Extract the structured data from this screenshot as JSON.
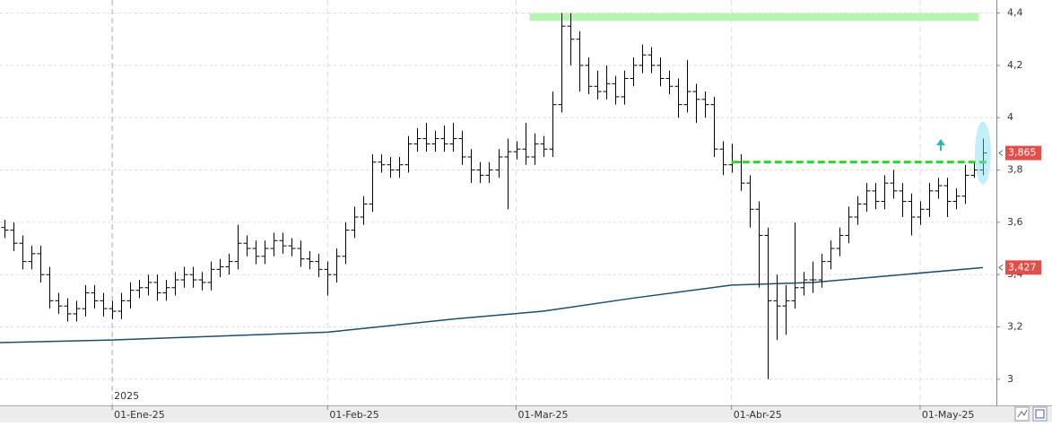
{
  "chart_data": {
    "type": "ohlc",
    "xlim": [
      -0.5,
      110.5
    ],
    "xticks": [
      {
        "value": 12,
        "label": "01-Ene-25"
      },
      {
        "value": 36,
        "label": "01-Feb-25"
      },
      {
        "value": 57,
        "label": "01-Mar-25"
      },
      {
        "value": 81,
        "label": "01-Abr-25"
      },
      {
        "value": 102,
        "label": "01-May-25"
      }
    ],
    "year_label": {
      "value": 12,
      "label": "2025"
    },
    "ylim": [
      2.9,
      4.45
    ],
    "yticks": [
      3,
      {
        "value": 3.2,
        "label": "3,2"
      },
      {
        "value": 3.4,
        "label": "3,4"
      },
      {
        "value": 3.6,
        "label": "3,6"
      },
      {
        "value": 3.8,
        "label": "3,8"
      },
      4,
      {
        "value": 4.2,
        "label": "4,2"
      },
      {
        "value": 4.4,
        "label": "4,4"
      }
    ],
    "grid": true,
    "color": "#000000",
    "open": [
      3.58,
      3.57,
      3.52,
      3.45,
      3.48,
      3.4,
      3.3,
      3.28,
      3.25,
      3.27,
      3.33,
      3.3,
      3.27,
      3.26,
      3.3,
      3.34,
      3.35,
      3.37,
      3.33,
      3.35,
      3.38,
      3.4,
      3.38,
      3.37,
      3.42,
      3.43,
      3.45,
      3.52,
      3.5,
      3.47,
      3.5,
      3.53,
      3.51,
      3.5,
      3.46,
      3.45,
      3.42,
      3.4,
      3.47,
      3.57,
      3.62,
      3.67,
      3.83,
      3.82,
      3.8,
      3.82,
      3.9,
      3.92,
      3.9,
      3.92,
      3.9,
      3.92,
      3.85,
      3.8,
      3.78,
      3.8,
      3.85,
      3.87,
      3.88,
      3.85,
      3.9,
      3.88,
      4.05,
      4.35,
      4.3,
      4.2,
      4.12,
      4.1,
      4.13,
      4.08,
      4.15,
      4.2,
      4.24,
      4.2,
      4.15,
      4.12,
      4.05,
      4.1,
      4.07,
      4.05,
      3.88,
      3.82,
      3.83,
      3.75,
      3.65,
      3.55,
      3.3,
      3.28,
      3.3,
      3.35,
      3.38,
      3.38,
      3.45,
      3.5,
      3.55,
      3.62,
      3.67,
      3.72,
      3.68,
      3.75,
      3.72,
      3.68,
      3.62,
      3.65,
      3.72,
      3.74,
      3.68,
      3.7,
      3.78,
      3.8
    ],
    "high": [
      3.61,
      3.6,
      3.55,
      3.51,
      3.51,
      3.43,
      3.33,
      3.31,
      3.3,
      3.36,
      3.36,
      3.33,
      3.3,
      3.33,
      3.37,
      3.38,
      3.4,
      3.4,
      3.38,
      3.41,
      3.43,
      3.43,
      3.41,
      3.45,
      3.46,
      3.48,
      3.59,
      3.55,
      3.53,
      3.53,
      3.56,
      3.56,
      3.54,
      3.53,
      3.49,
      3.48,
      3.45,
      3.5,
      3.6,
      3.66,
      3.7,
      3.86,
      3.86,
      3.85,
      3.85,
      3.93,
      3.96,
      3.98,
      3.95,
      3.97,
      3.98,
      3.95,
      3.88,
      3.83,
      3.83,
      3.88,
      3.92,
      3.91,
      3.98,
      3.94,
      3.93,
      4.1,
      4.4,
      4.4,
      4.33,
      4.23,
      4.18,
      4.2,
      4.16,
      4.18,
      4.23,
      4.28,
      4.27,
      4.23,
      4.18,
      4.15,
      4.22,
      4.13,
      4.1,
      4.08,
      3.91,
      3.9,
      3.86,
      3.78,
      3.68,
      3.58,
      3.4,
      3.36,
      3.6,
      3.41,
      3.45,
      3.48,
      3.53,
      3.58,
      3.66,
      3.7,
      3.75,
      3.75,
      3.78,
      3.8,
      3.75,
      3.71,
      3.68,
      3.75,
      3.77,
      3.77,
      3.73,
      3.82,
      3.83,
      3.92
    ],
    "low": [
      3.54,
      3.49,
      3.42,
      3.42,
      3.37,
      3.27,
      3.25,
      3.22,
      3.22,
      3.24,
      3.27,
      3.24,
      3.23,
      3.23,
      3.27,
      3.31,
      3.32,
      3.3,
      3.3,
      3.32,
      3.35,
      3.35,
      3.34,
      3.34,
      3.39,
      3.4,
      3.42,
      3.47,
      3.44,
      3.44,
      3.47,
      3.48,
      3.47,
      3.43,
      3.42,
      3.39,
      3.32,
      3.37,
      3.44,
      3.54,
      3.59,
      3.64,
      3.79,
      3.77,
      3.77,
      3.79,
      3.87,
      3.87,
      3.87,
      3.87,
      3.87,
      3.82,
      3.75,
      3.75,
      3.75,
      3.77,
      3.65,
      3.84,
      3.82,
      3.82,
      3.85,
      3.85,
      4.02,
      4.2,
      4.1,
      4.09,
      4.07,
      4.07,
      4.05,
      4.05,
      4.12,
      4.17,
      4.17,
      4.12,
      4.09,
      4.0,
      4.02,
      3.98,
      4.0,
      3.85,
      3.78,
      3.79,
      3.72,
      3.58,
      3.35,
      3.0,
      3.15,
      3.17,
      3.27,
      3.32,
      3.33,
      3.35,
      3.42,
      3.47,
      3.52,
      3.59,
      3.64,
      3.65,
      3.65,
      3.69,
      3.62,
      3.55,
      3.59,
      3.62,
      3.69,
      3.62,
      3.65,
      3.67,
      3.77,
      3.78
    ],
    "close": [
      3.57,
      3.52,
      3.45,
      3.48,
      3.4,
      3.3,
      3.28,
      3.25,
      3.27,
      3.33,
      3.3,
      3.27,
      3.26,
      3.3,
      3.34,
      3.35,
      3.37,
      3.33,
      3.35,
      3.38,
      3.4,
      3.38,
      3.37,
      3.42,
      3.43,
      3.45,
      3.52,
      3.5,
      3.47,
      3.5,
      3.53,
      3.51,
      3.5,
      3.46,
      3.45,
      3.42,
      3.4,
      3.47,
      3.57,
      3.62,
      3.67,
      3.83,
      3.82,
      3.8,
      3.82,
      3.9,
      3.92,
      3.9,
      3.92,
      3.9,
      3.92,
      3.85,
      3.8,
      3.78,
      3.8,
      3.85,
      3.87,
      3.88,
      3.85,
      3.9,
      3.88,
      4.05,
      4.35,
      4.3,
      4.2,
      4.12,
      4.1,
      4.13,
      4.08,
      4.15,
      4.2,
      4.24,
      4.2,
      4.15,
      4.12,
      4.05,
      4.1,
      4.07,
      4.05,
      3.88,
      3.82,
      3.83,
      3.75,
      3.65,
      3.55,
      3.3,
      3.28,
      3.3,
      3.35,
      3.38,
      3.38,
      3.45,
      3.5,
      3.55,
      3.62,
      3.67,
      3.72,
      3.68,
      3.75,
      3.72,
      3.68,
      3.62,
      3.65,
      3.72,
      3.74,
      3.68,
      3.7,
      3.78,
      3.8,
      3.865
    ],
    "moving_average": {
      "color": "#1d4f66",
      "x": [
        -0.5,
        12,
        36,
        50,
        60,
        70,
        81,
        90,
        100,
        109
      ],
      "values": [
        3.14,
        3.15,
        3.18,
        3.23,
        3.26,
        3.31,
        3.36,
        3.37,
        3.4,
        3.427
      ]
    },
    "price_markers": [
      {
        "value": 3.865,
        "label": "3,865",
        "color": "#e0504a"
      },
      {
        "value": 3.427,
        "label": "3,427",
        "color": "#e0504a"
      }
    ],
    "resistance_zone": {
      "from": 58.5,
      "to": 108.5,
      "bottom": 4.37,
      "top": 4.4,
      "color": "#b7f5b0"
    },
    "support_line": {
      "from": 81,
      "to": 109,
      "value": 3.83,
      "color": "#22d622"
    }
  }
}
